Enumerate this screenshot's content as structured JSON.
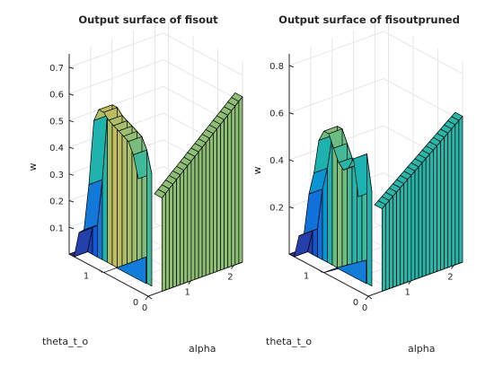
{
  "colors": {
    "background": "#ffffff",
    "axis": "#262626",
    "grid": "#e6e6e6",
    "edge": "#000000",
    "colormap": "parula"
  },
  "chart_data": [
    {
      "type": "surface",
      "title": "Output surface of fisout",
      "xlabel": "alpha",
      "ylabel": "theta_t_o",
      "zlabel": "w",
      "xlim": [
        0,
        2.2
      ],
      "ylim": [
        0,
        1.6
      ],
      "zlim": [
        0,
        0.75
      ],
      "x_ticks": [
        "0",
        "1",
        "2"
      ],
      "y_ticks": [
        "0",
        "1"
      ],
      "z_ticks": [
        "0.1",
        "0.2",
        "0.3",
        "0.4",
        "0.5",
        "0.6",
        "0.7"
      ],
      "z_tick_values": [
        0.1,
        0.2,
        0.3,
        0.4,
        0.5,
        0.6,
        0.7
      ],
      "view": "3d-perspective",
      "grid": true,
      "ridge_profile": {
        "alpha": [
          0.0,
          0.1,
          0.2,
          0.3,
          0.4,
          0.5,
          0.6,
          0.7,
          0.8,
          0.9,
          1.0,
          1.1,
          1.2,
          1.3,
          1.4,
          1.5,
          1.6,
          1.7,
          1.8,
          1.9,
          2.0,
          2.1,
          2.2
        ],
        "w": [
          0.35,
          0.35,
          0.35,
          0.35,
          0.35,
          0.35,
          0.35,
          0.35,
          0.35,
          0.35,
          0.35,
          0.35,
          0.35,
          0.35,
          0.35,
          0.35,
          0.35,
          0.35,
          0.35,
          0.35,
          0.35,
          0.35,
          0.35
        ]
      },
      "peak_profile": {
        "theta_t_o": [
          1.6,
          1.5,
          1.4,
          1.3,
          1.2,
          1.1,
          1.0,
          0.9,
          0.8,
          0.7,
          0.6,
          0.5,
          0.4,
          0.3,
          0.2
        ],
        "w": [
          0.0,
          0.0,
          0.1,
          0.12,
          0.3,
          0.55,
          0.6,
          0.6,
          0.58,
          0.57,
          0.56,
          0.55,
          0.54,
          0.5,
          0.42
        ]
      }
    },
    {
      "type": "surface",
      "title": "Output surface of fisoutpruned",
      "xlabel": "alpha",
      "ylabel": "theta_t_o",
      "zlabel": "w",
      "xlim": [
        0,
        2.2
      ],
      "ylim": [
        0,
        1.6
      ],
      "zlim": [
        0,
        0.85
      ],
      "x_ticks": [
        "0",
        "1",
        "2"
      ],
      "y_ticks": [
        "0",
        "1"
      ],
      "z_ticks": [
        "0.2",
        "0.4",
        "0.6",
        "0.8"
      ],
      "z_tick_values": [
        0.2,
        0.4,
        0.6,
        0.8
      ],
      "view": "3d-perspective",
      "grid": true,
      "ridge_profile": {
        "alpha": [
          0.0,
          0.1,
          0.2,
          0.3,
          0.4,
          0.5,
          0.6,
          0.7,
          0.8,
          0.9,
          1.0,
          1.1,
          1.2,
          1.3,
          1.4,
          1.5,
          1.6,
          1.7,
          1.8,
          1.9,
          2.0,
          2.1,
          2.2
        ],
        "w": [
          0.35,
          0.35,
          0.35,
          0.35,
          0.35,
          0.35,
          0.35,
          0.35,
          0.35,
          0.35,
          0.35,
          0.35,
          0.35,
          0.35,
          0.35,
          0.35,
          0.35,
          0.35,
          0.35,
          0.35,
          0.35,
          0.35,
          0.35
        ]
      },
      "peak_profile": {
        "theta_t_o": [
          1.6,
          1.5,
          1.4,
          1.3,
          1.2,
          1.1,
          1.0,
          0.9,
          0.8,
          0.7,
          0.6,
          0.5,
          0.4,
          0.3,
          0.2
        ],
        "w": [
          0.0,
          0.0,
          0.1,
          0.12,
          0.3,
          0.4,
          0.55,
          0.6,
          0.6,
          0.55,
          0.5,
          0.48,
          0.5,
          0.55,
          0.4
        ]
      }
    }
  ]
}
